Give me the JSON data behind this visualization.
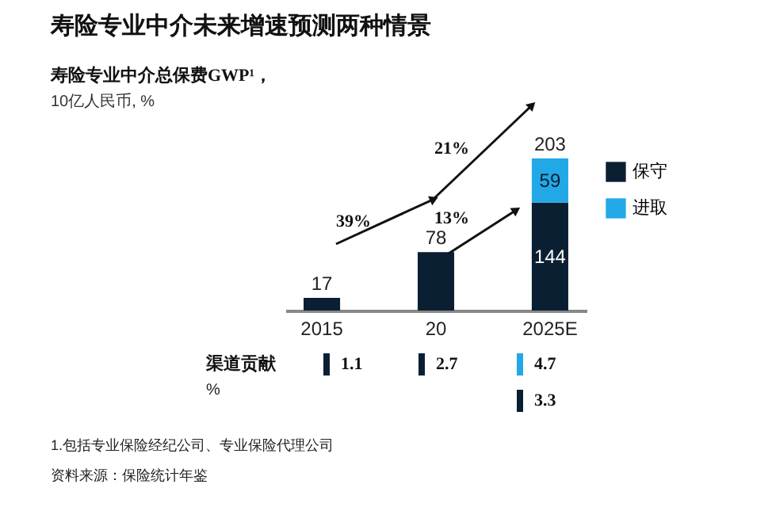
{
  "chart_data": {
    "type": "bar",
    "title": "寿险专业中介未来增速预测两种情景",
    "subtitle": "寿险专业中介总保费GWP¹，\n10亿人民币, %",
    "categories": [
      "2015",
      "20",
      "2025E"
    ],
    "stacked": true,
    "legend": "right",
    "series": [
      {
        "name": "保守",
        "color": "#0b1f33",
        "values": [
          17,
          78,
          144
        ],
        "value_labels": [
          null,
          null,
          "144"
        ]
      },
      {
        "name": "进取",
        "color": "#22a8e6",
        "values": [
          null,
          null,
          59
        ],
        "value_labels": [
          null,
          null,
          "59"
        ]
      }
    ],
    "totals": [
      "17",
      "78",
      "203"
    ],
    "annotations": [
      "39%",
      "21%",
      "13%",
      "渠道贡献\n%",
      "1.1",
      "2.7",
      "4.7",
      "3.3",
      "1.包括专业保险经纪公司、专业保险代理公司",
      "资料来源：保险统计年鉴"
    ]
  }
}
